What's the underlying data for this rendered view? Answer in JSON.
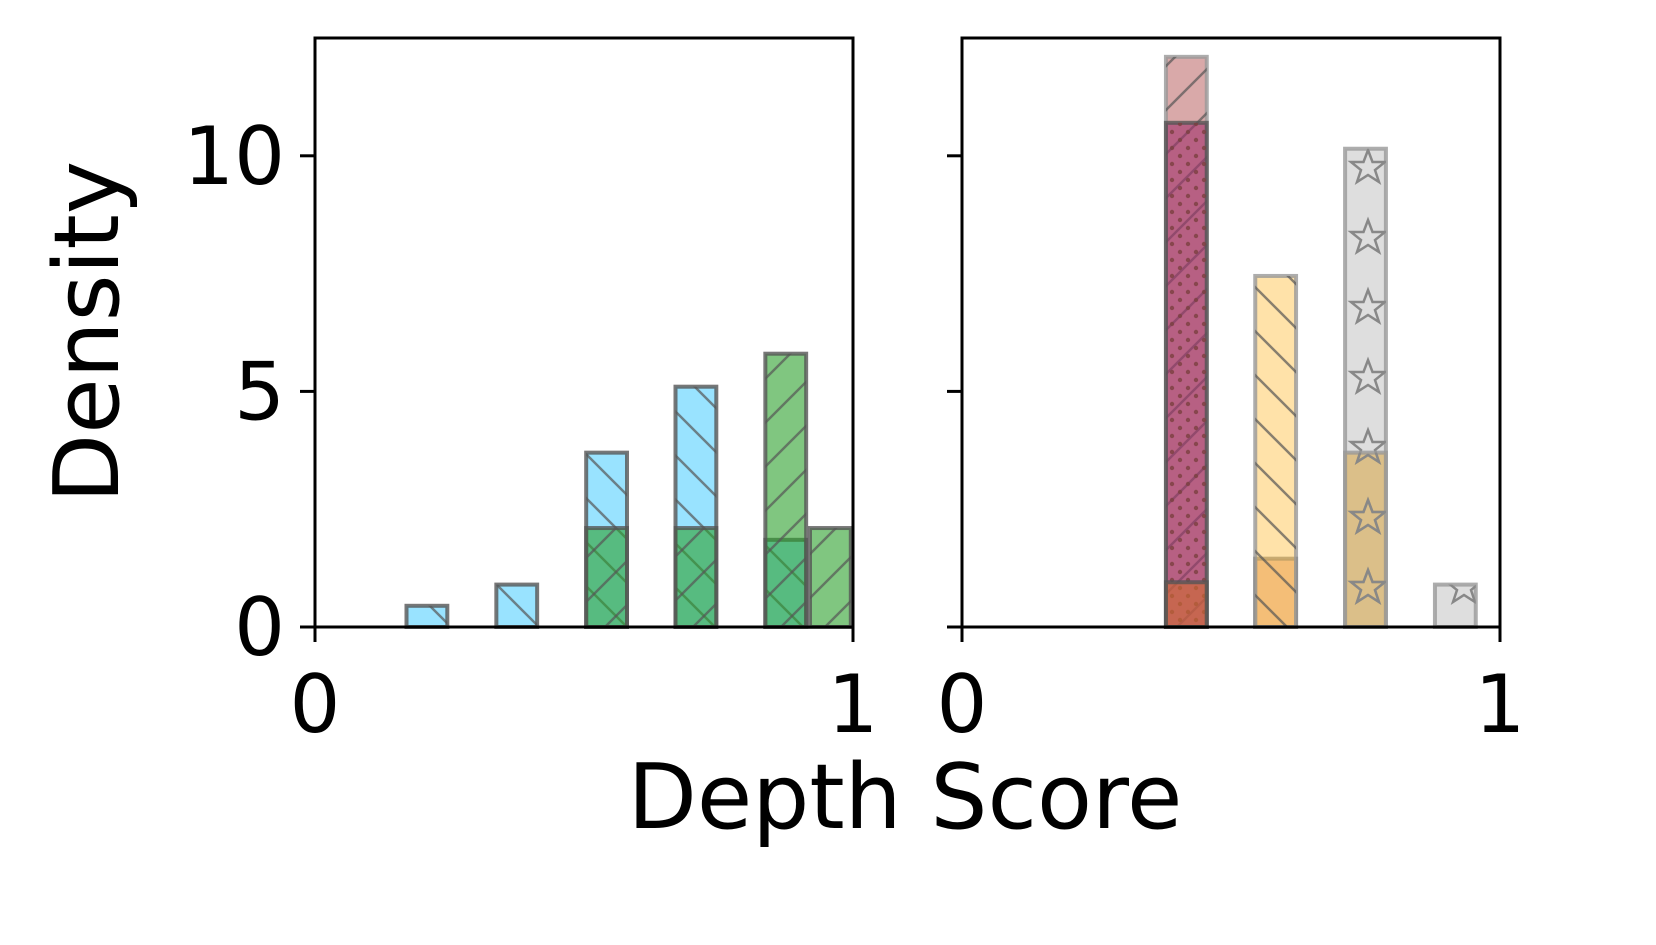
{
  "xlabel": "Depth Score",
  "ylabel": "Density",
  "chart_data": [
    {
      "type": "bar",
      "panel": "left",
      "xlim": [
        0,
        1
      ],
      "ylim": [
        0,
        12.5
      ],
      "x_ticks": [
        "0",
        "1"
      ],
      "y_ticks": [
        "0",
        "5",
        "10"
      ],
      "bin_width": 0.0833,
      "colors": {
        "blue": "#55d0ff",
        "green": "#2ca02c"
      },
      "series": [
        {
          "color": "blue",
          "hatch": "backslash",
          "bins": [
            {
              "x": 0.208,
              "value": 0.45
            },
            {
              "x": 0.375,
              "value": 0.9
            },
            {
              "x": 0.542,
              "value": 3.7
            },
            {
              "x": 0.708,
              "value": 5.1
            },
            {
              "x": 0.875,
              "value": 1.85
            }
          ]
        },
        {
          "color": "green",
          "hatch": "slash",
          "bins": [
            {
              "x": 0.542,
              "value": 2.1
            },
            {
              "x": 0.708,
              "value": 2.1
            },
            {
              "x": 0.875,
              "value": 5.8
            },
            {
              "x": 0.958,
              "value": 2.1
            }
          ]
        }
      ]
    },
    {
      "type": "bar",
      "panel": "right",
      "xlim": [
        0,
        1
      ],
      "ylim": [
        0,
        12.5
      ],
      "x_ticks": [
        "0",
        "1"
      ],
      "y_ticks": [
        "0",
        "5",
        "10"
      ],
      "bin_width": 0.0833,
      "colors": {
        "rose": "#c07070",
        "purple": "#a0306a",
        "orange": "#d06a30",
        "peach": "#ffcf70",
        "gray": "#c8c8c8",
        "tan": "#d8aa50"
      },
      "series": [
        {
          "color": "rose",
          "hatch": "slash",
          "bins": [
            {
              "x": 0.417,
              "value": 12.1
            }
          ]
        },
        {
          "color": "purple",
          "hatch": "dots",
          "bins": [
            {
              "x": 0.417,
              "value": 10.7
            }
          ]
        },
        {
          "color": "orange",
          "hatch": "none",
          "bins": [
            {
              "x": 0.417,
              "value": 0.95
            },
            {
              "x": 0.583,
              "value": 1.45
            }
          ]
        },
        {
          "color": "peach",
          "hatch": "backslash",
          "bins": [
            {
              "x": 0.583,
              "value": 7.45
            }
          ]
        },
        {
          "color": "gray",
          "hatch": "stars",
          "bins": [
            {
              "x": 0.75,
              "value": 10.15
            },
            {
              "x": 0.917,
              "value": 0.9
            }
          ]
        },
        {
          "color": "tan",
          "hatch": "stars",
          "bins": [
            {
              "x": 0.75,
              "value": 3.7
            }
          ]
        }
      ]
    }
  ]
}
